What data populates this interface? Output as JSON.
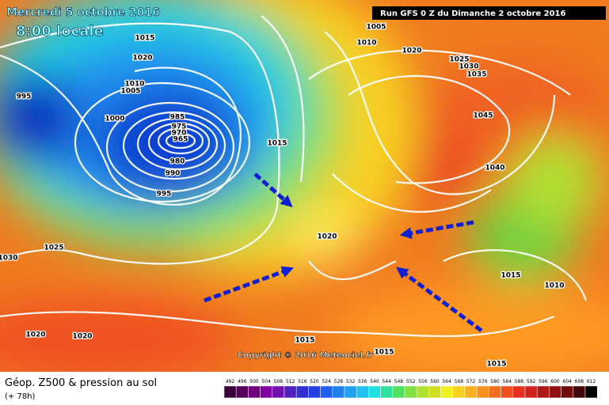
{
  "header": {
    "date": "Mercredi 5 octobre 2016",
    "time": "8:00 locale",
    "run": "Run GFS 0 Z du Dimanche 2 octobre 2016"
  },
  "copyright": "Copyright © 2016 Meteociel.fr",
  "isobar_labels": [
    "1015",
    "1020",
    "1010",
    "1005",
    "995",
    "1000",
    "985",
    "975",
    "970",
    "965",
    "980",
    "990",
    "995",
    "1015",
    "1005",
    "1010",
    "1020",
    "1025",
    "1030",
    "1035",
    "1045",
    "1040",
    "1020",
    "1025",
    "1030",
    "1015",
    "1010",
    "1020",
    "1020",
    "1015",
    "1015",
    "1015"
  ],
  "legend": {
    "title": "Géop. Z500 & pression au sol",
    "lead": "(+ 78h)",
    "scale": [
      492,
      496,
      500,
      504,
      508,
      512,
      516,
      520,
      524,
      528,
      532,
      536,
      540,
      544,
      548,
      552,
      556,
      560,
      564,
      568,
      572,
      576,
      580,
      584,
      588,
      592,
      596,
      600,
      604,
      608,
      612
    ]
  }
}
